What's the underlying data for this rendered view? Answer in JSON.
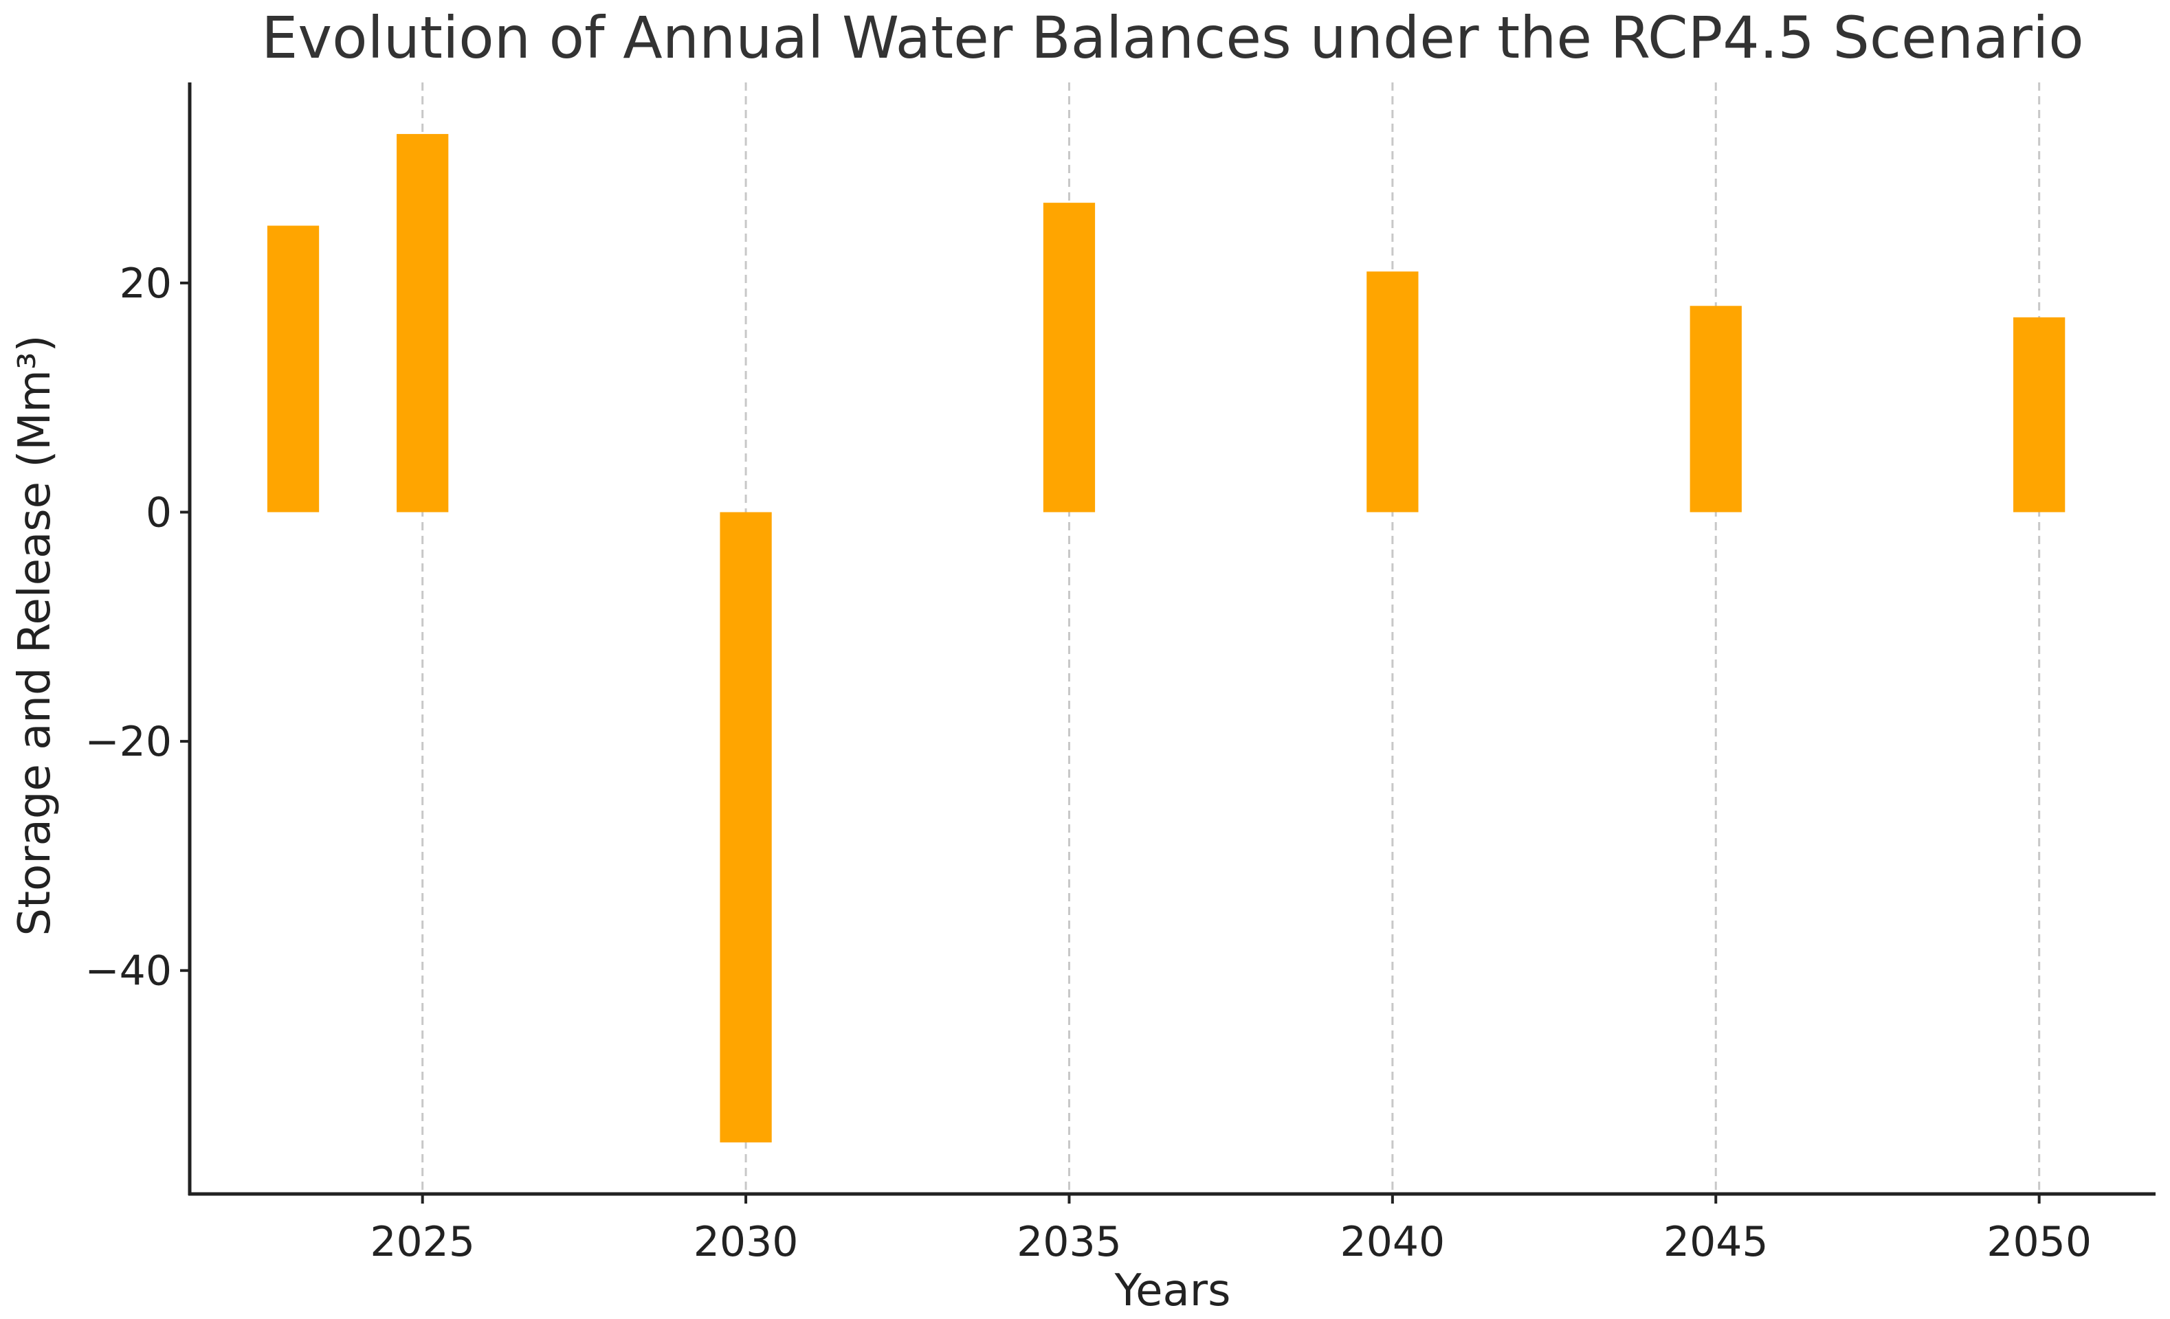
{
  "chart_data": {
    "type": "bar",
    "title": "Evolution of Annual Water Balances under the RCP4.5 Scenario",
    "xlabel": "Years",
    "ylabel": "Storage and Release (Mm³)",
    "x": [
      2023,
      2025,
      2030,
      2035,
      2040,
      2045,
      2050
    ],
    "values": [
      25,
      33,
      -55,
      27,
      21,
      18,
      17
    ],
    "bar_width_years": 0.8,
    "xlim": [
      2021.4,
      2051.8
    ],
    "ylim": [
      -59.5,
      37.5
    ],
    "x_ticks": [
      2025,
      2030,
      2035,
      2040,
      2045,
      2050
    ],
    "y_ticks": [
      -40,
      -20,
      0,
      20
    ],
    "y_tick_labels": [
      "−40",
      "−20",
      "0",
      "20"
    ],
    "bar_color": "#ffa500",
    "grid": "x-dashed",
    "legend": "none"
  }
}
